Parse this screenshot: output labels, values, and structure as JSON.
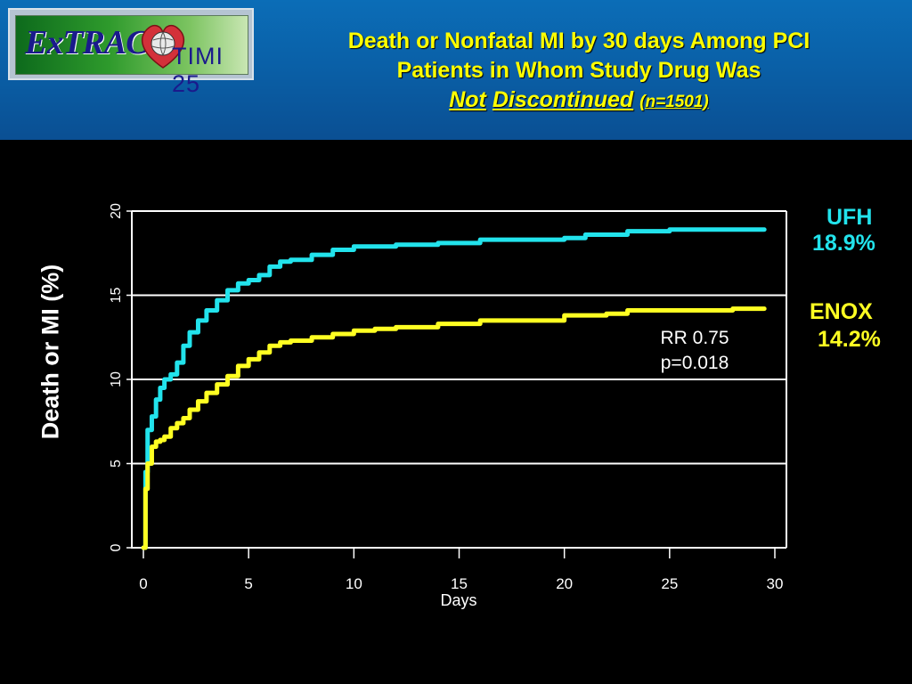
{
  "header": {
    "logo_text": "ExTRACT",
    "logo_subtext": "TIMI 25",
    "title_line1": "Death or Nonfatal MI by 30 days Among PCI",
    "title_line2": "Patients in Whom Study Drug Was",
    "title_word1": "Not",
    "title_word2": "Discontinued",
    "title_n": "(n=1501)"
  },
  "annotation": {
    "rr": "RR 0.75",
    "p": "p=0.018"
  },
  "legend": {
    "ufh_name": "UFH",
    "ufh_value": "18.9%",
    "enox_name": "ENOX",
    "enox_value": "14.2%"
  },
  "colors": {
    "ufh": "#22e3ec",
    "enox": "#ffff22",
    "title": "#ffff00",
    "header_bg": "#0a63ab"
  },
  "chart_data": {
    "type": "line",
    "xlabel": "Days",
    "ylabel": "Death or MI (%)",
    "xlim": [
      0,
      30
    ],
    "ylim": [
      0,
      20
    ],
    "xticks": [
      0,
      5,
      10,
      15,
      20,
      25,
      30
    ],
    "yticks": [
      0,
      5,
      10,
      15,
      20
    ],
    "grid": "horizontal",
    "series": [
      {
        "name": "UFH",
        "x": [
          0,
          0.1,
          0.2,
          0.4,
          0.6,
          0.8,
          1.0,
          1.3,
          1.6,
          1.9,
          2.2,
          2.6,
          3.0,
          3.5,
          4.0,
          4.5,
          5.0,
          5.5,
          6.0,
          6.5,
          7.0,
          8.0,
          9.0,
          10.0,
          12.0,
          14.0,
          16.0,
          18.0,
          20.0,
          21.0,
          23.0,
          25.0,
          28.0,
          29.5
        ],
        "y": [
          0,
          4.5,
          7.0,
          7.8,
          8.8,
          9.5,
          10.0,
          10.3,
          11.0,
          12.0,
          12.8,
          13.5,
          14.1,
          14.7,
          15.3,
          15.7,
          15.9,
          16.2,
          16.7,
          17.0,
          17.1,
          17.4,
          17.7,
          17.9,
          18.0,
          18.1,
          18.3,
          18.3,
          18.4,
          18.6,
          18.8,
          18.9,
          18.9,
          18.9
        ]
      },
      {
        "name": "ENOX",
        "x": [
          0,
          0.1,
          0.2,
          0.4,
          0.6,
          0.8,
          1.0,
          1.3,
          1.6,
          1.9,
          2.2,
          2.6,
          3.0,
          3.5,
          4.0,
          4.5,
          5.0,
          5.5,
          6.0,
          6.5,
          7.0,
          8.0,
          9.0,
          10.0,
          11.0,
          12.0,
          14.0,
          16.0,
          18.0,
          20.0,
          22.0,
          23.0,
          25.0,
          28.0,
          29.5
        ],
        "y": [
          0,
          3.5,
          5.0,
          6.0,
          6.3,
          6.4,
          6.6,
          7.1,
          7.4,
          7.7,
          8.2,
          8.7,
          9.2,
          9.7,
          10.2,
          10.8,
          11.2,
          11.6,
          12.0,
          12.2,
          12.3,
          12.5,
          12.7,
          12.9,
          13.0,
          13.1,
          13.3,
          13.5,
          13.5,
          13.8,
          13.9,
          14.1,
          14.1,
          14.2,
          14.2
        ]
      }
    ]
  }
}
